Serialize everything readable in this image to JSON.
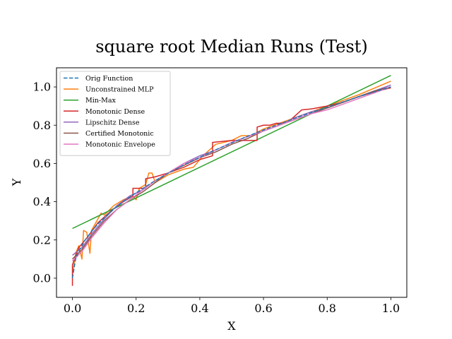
{
  "chart_data": {
    "type": "line",
    "title": "square root Median Runs (Test)",
    "xlabel": "X",
    "ylabel": "Y",
    "xlim": [
      -0.05,
      1.05
    ],
    "ylim": [
      -0.1,
      1.1
    ],
    "xticks": [
      0.0,
      0.2,
      0.4,
      0.6,
      0.8,
      1.0
    ],
    "xtick_labels": [
      "0.0",
      "0.2",
      "0.4",
      "0.6",
      "0.8",
      "1.0"
    ],
    "yticks": [
      0.0,
      0.2,
      0.4,
      0.6,
      0.8,
      1.0
    ],
    "ytick_labels": [
      "0.0",
      "0.2",
      "0.4",
      "0.6",
      "0.8",
      "1.0"
    ],
    "grid": false,
    "legend_position": "top-left",
    "series": [
      {
        "name": "Orig Function",
        "color": "#1f77b4",
        "dashed": true,
        "x": [
          0.0,
          0.01,
          0.02,
          0.04,
          0.06,
          0.08,
          0.1,
          0.13,
          0.16,
          0.2,
          0.25,
          0.3,
          0.35,
          0.4,
          0.45,
          0.5,
          0.55,
          0.6,
          0.65,
          0.7,
          0.75,
          0.8,
          0.85,
          0.9,
          0.95,
          1.0
        ],
        "y": [
          0.0,
          0.1,
          0.141,
          0.2,
          0.245,
          0.283,
          0.316,
          0.361,
          0.4,
          0.447,
          0.5,
          0.548,
          0.592,
          0.632,
          0.671,
          0.707,
          0.742,
          0.775,
          0.806,
          0.837,
          0.866,
          0.894,
          0.922,
          0.949,
          0.975,
          1.0
        ]
      },
      {
        "name": "Unconstrained MLP",
        "color": "#ff7f0e",
        "dashed": false,
        "x": [
          0.0,
          0.01,
          0.02,
          0.03,
          0.035,
          0.045,
          0.055,
          0.06,
          0.07,
          0.09,
          0.1,
          0.13,
          0.16,
          0.19,
          0.2,
          0.21,
          0.23,
          0.24,
          0.25,
          0.26,
          0.3,
          0.35,
          0.38,
          0.41,
          0.45,
          0.5,
          0.53,
          0.56,
          0.6,
          0.65,
          0.7,
          0.75,
          0.8,
          0.85,
          0.9,
          0.95,
          1.0
        ],
        "y": [
          0.02,
          0.13,
          0.17,
          0.1,
          0.25,
          0.24,
          0.13,
          0.25,
          0.28,
          0.34,
          0.33,
          0.38,
          0.41,
          0.43,
          0.41,
          0.47,
          0.49,
          0.55,
          0.55,
          0.5,
          0.54,
          0.57,
          0.58,
          0.64,
          0.7,
          0.72,
          0.745,
          0.745,
          0.78,
          0.81,
          0.84,
          0.87,
          0.9,
          0.93,
          0.96,
          0.995,
          1.03
        ]
      },
      {
        "name": "Min-Max",
        "color": "#2ca02c",
        "dashed": false,
        "x": [
          0.0,
          1.0
        ],
        "y": [
          0.26,
          1.06
        ]
      },
      {
        "name": "Monotonic Dense",
        "color": "#d62728",
        "dashed": false,
        "x": [
          0.0,
          0.0,
          0.02,
          0.05,
          0.08,
          0.12,
          0.16,
          0.19,
          0.19,
          0.23,
          0.23,
          0.26,
          0.3,
          0.35,
          0.4,
          0.44,
          0.44,
          0.5,
          0.58,
          0.58,
          0.6,
          0.62,
          0.64,
          0.66,
          0.68,
          0.7,
          0.72,
          0.75,
          0.8,
          0.85,
          0.9,
          0.95,
          1.0
        ],
        "y": [
          -0.04,
          0.07,
          0.16,
          0.22,
          0.29,
          0.35,
          0.4,
          0.43,
          0.47,
          0.47,
          0.52,
          0.53,
          0.55,
          0.58,
          0.62,
          0.64,
          0.71,
          0.72,
          0.72,
          0.79,
          0.8,
          0.8,
          0.81,
          0.81,
          0.82,
          0.85,
          0.88,
          0.885,
          0.9,
          0.92,
          0.95,
          0.975,
          0.995
        ]
      },
      {
        "name": "Lipschitz Dense",
        "color": "#9467bd",
        "dashed": false,
        "x": [
          0.0,
          0.03,
          0.06,
          0.1,
          0.14,
          0.18,
          0.22,
          0.26,
          0.3,
          0.35,
          0.4,
          0.45,
          0.5,
          0.55,
          0.6,
          0.65,
          0.7,
          0.75,
          0.8,
          0.85,
          0.9,
          0.95,
          1.0
        ],
        "y": [
          0.12,
          0.16,
          0.23,
          0.31,
          0.38,
          0.43,
          0.46,
          0.51,
          0.55,
          0.6,
          0.64,
          0.67,
          0.71,
          0.74,
          0.77,
          0.8,
          0.84,
          0.87,
          0.89,
          0.92,
          0.95,
          0.98,
          1.01
        ]
      },
      {
        "name": "Certified Monotonic",
        "color": "#8c564b",
        "dashed": false,
        "x": [
          0.0,
          0.03,
          0.06,
          0.1,
          0.14,
          0.18,
          0.22,
          0.26,
          0.3,
          0.35,
          0.4,
          0.45,
          0.5,
          0.55,
          0.6,
          0.65,
          0.7,
          0.75,
          0.8,
          0.85,
          0.9,
          0.95,
          1.0
        ],
        "y": [
          0.1,
          0.15,
          0.22,
          0.3,
          0.36,
          0.41,
          0.45,
          0.5,
          0.55,
          0.59,
          0.63,
          0.66,
          0.7,
          0.73,
          0.77,
          0.8,
          0.83,
          0.86,
          0.89,
          0.92,
          0.95,
          0.98,
          1.0
        ]
      },
      {
        "name": "Monotonic Envelope",
        "color": "#e377c2",
        "dashed": false,
        "x": [
          0.0,
          0.03,
          0.06,
          0.1,
          0.14,
          0.18,
          0.22,
          0.26,
          0.3,
          0.35,
          0.4,
          0.45,
          0.5,
          0.55,
          0.6,
          0.65,
          0.7,
          0.75,
          0.8,
          0.85,
          0.9,
          0.95,
          1.0
        ],
        "y": [
          0.09,
          0.14,
          0.21,
          0.29,
          0.36,
          0.41,
          0.46,
          0.51,
          0.55,
          0.6,
          0.63,
          0.67,
          0.71,
          0.74,
          0.77,
          0.8,
          0.83,
          0.86,
          0.88,
          0.91,
          0.94,
          0.97,
          1.0
        ]
      }
    ]
  }
}
